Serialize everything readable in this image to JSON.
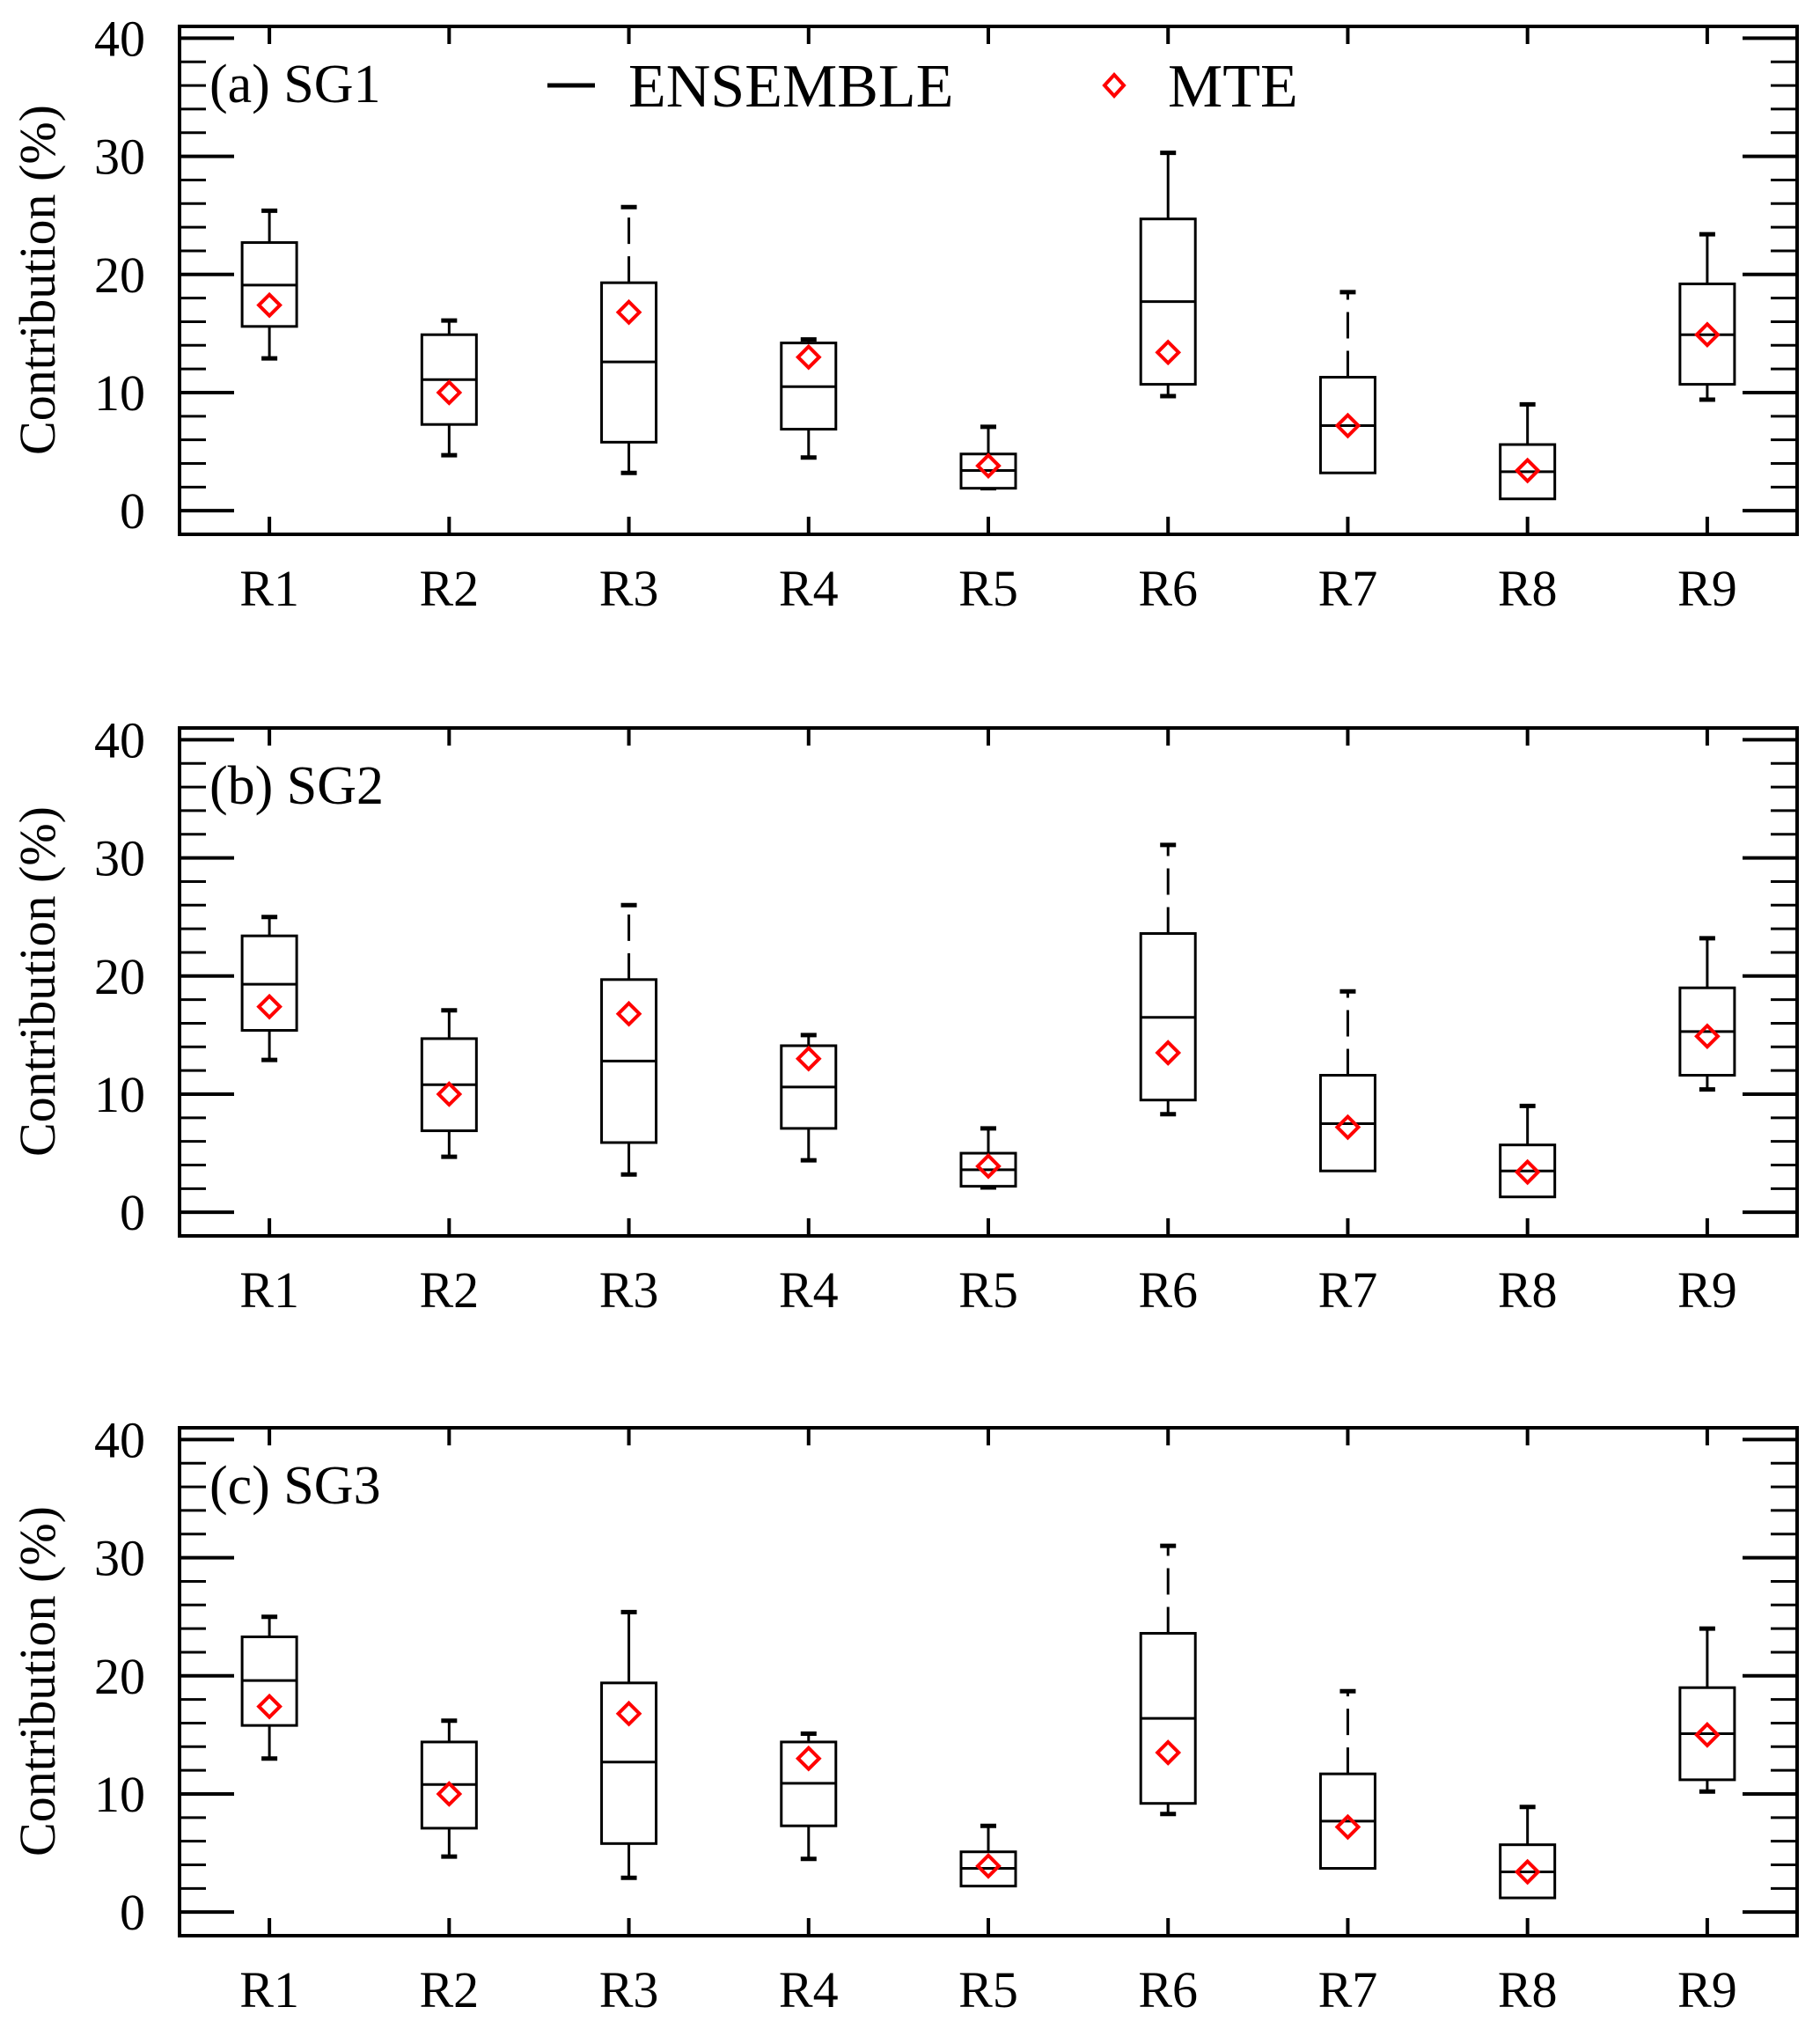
{
  "figure": {
    "colors": {
      "ensemble": "#000000",
      "mte": "#ff0000",
      "background": "#ffffff"
    },
    "legend": {
      "position": "top-center",
      "entries": [
        {
          "label": "ENSEMBLE",
          "symbol": "dash",
          "color": "#000000"
        },
        {
          "label": "MTE",
          "symbol": "open-diamond",
          "color": "#ff0000"
        }
      ]
    }
  },
  "chart_data": [
    {
      "type": "box",
      "panel": "a",
      "title": "(a) SG1",
      "xlabel": "",
      "ylabel": "Contribution (%)",
      "ylim": [
        -2,
        41
      ],
      "yticks": [
        0,
        10,
        20,
        30,
        40
      ],
      "yminor_step": 2,
      "grid": false,
      "categories": [
        "R1",
        "R2",
        "R3",
        "R4",
        "R5",
        "R6",
        "R7",
        "R8",
        "R9"
      ],
      "series": [
        {
          "name": "ENSEMBLE",
          "stats": [
            {
              "whisker_low": 12.9,
              "q1": 15.6,
              "median": 19.1,
              "q3": 22.7,
              "whisker_high": 25.4
            },
            {
              "whisker_low": 4.7,
              "q1": 7.3,
              "median": 11.1,
              "q3": 14.9,
              "whisker_high": 16.1
            },
            {
              "whisker_low": 3.2,
              "q1": 5.8,
              "median": 12.6,
              "q3": 19.3,
              "whisker_high": 25.7
            },
            {
              "whisker_low": 4.5,
              "q1": 6.9,
              "median": 10.5,
              "q3": 14.2,
              "whisker_high": 14.5
            },
            {
              "whisker_low": 1.9,
              "q1": 1.9,
              "median": 3.4,
              "q3": 4.8,
              "whisker_high": 7.1
            },
            {
              "whisker_low": 9.7,
              "q1": 10.7,
              "median": 17.7,
              "q3": 24.7,
              "whisker_high": 30.3
            },
            {
              "whisker_low": 3.8,
              "q1": 3.2,
              "median": 7.2,
              "q3": 11.3,
              "whisker_high": 18.5
            },
            {
              "whisker_low": 1.4,
              "q1": 1.0,
              "median": 3.3,
              "q3": 5.6,
              "whisker_high": 9.0
            },
            {
              "whisker_low": 9.4,
              "q1": 10.7,
              "median": 14.9,
              "q3": 19.2,
              "whisker_high": 23.4
            }
          ]
        },
        {
          "name": "MTE",
          "values": [
            17.4,
            10.0,
            16.8,
            13.0,
            3.8,
            13.4,
            7.2,
            3.4,
            14.9
          ]
        }
      ]
    },
    {
      "type": "box",
      "panel": "b",
      "title": "(b) SG2",
      "xlabel": "",
      "ylabel": "Contribution (%)",
      "ylim": [
        -2,
        41
      ],
      "yticks": [
        0,
        10,
        20,
        30,
        40
      ],
      "yminor_step": 2,
      "grid": false,
      "categories": [
        "R1",
        "R2",
        "R3",
        "R4",
        "R5",
        "R6",
        "R7",
        "R8",
        "R9"
      ],
      "series": [
        {
          "name": "ENSEMBLE",
          "stats": [
            {
              "whisker_low": 12.9,
              "q1": 15.4,
              "median": 19.3,
              "q3": 23.4,
              "whisker_high": 25.0
            },
            {
              "whisker_low": 4.7,
              "q1": 6.9,
              "median": 10.8,
              "q3": 14.7,
              "whisker_high": 17.1
            },
            {
              "whisker_low": 3.2,
              "q1": 5.9,
              "median": 12.8,
              "q3": 19.7,
              "whisker_high": 26.0
            },
            {
              "whisker_low": 4.4,
              "q1": 7.1,
              "median": 10.6,
              "q3": 14.1,
              "whisker_high": 15.0
            },
            {
              "whisker_low": 2.1,
              "q1": 2.2,
              "median": 3.6,
              "q3": 5.0,
              "whisker_high": 7.1
            },
            {
              "whisker_low": 8.3,
              "q1": 9.5,
              "median": 16.5,
              "q3": 23.6,
              "whisker_high": 31.1
            },
            {
              "whisker_low": 3.7,
              "q1": 3.5,
              "median": 7.5,
              "q3": 11.6,
              "whisker_high": 18.7
            },
            {
              "whisker_low": 1.4,
              "q1": 1.3,
              "median": 3.5,
              "q3": 5.7,
              "whisker_high": 9.0
            },
            {
              "whisker_low": 10.4,
              "q1": 11.6,
              "median": 15.3,
              "q3": 19.0,
              "whisker_high": 23.2
            }
          ]
        },
        {
          "name": "MTE",
          "values": [
            17.4,
            10.0,
            16.8,
            13.0,
            3.9,
            13.5,
            7.2,
            3.4,
            14.9
          ]
        }
      ]
    },
    {
      "type": "box",
      "panel": "c",
      "title": "(c) SG3",
      "xlabel": "",
      "ylabel": "Contribution (%)",
      "ylim": [
        -2,
        41
      ],
      "yticks": [
        0,
        10,
        20,
        30,
        40
      ],
      "yminor_step": 2,
      "grid": false,
      "categories": [
        "R1",
        "R2",
        "R3",
        "R4",
        "R5",
        "R6",
        "R7",
        "R8",
        "R9"
      ],
      "series": [
        {
          "name": "ENSEMBLE",
          "stats": [
            {
              "whisker_low": 13.0,
              "q1": 15.8,
              "median": 19.6,
              "q3": 23.3,
              "whisker_high": 25.0
            },
            {
              "whisker_low": 4.7,
              "q1": 7.1,
              "median": 10.8,
              "q3": 14.4,
              "whisker_high": 16.2
            },
            {
              "whisker_low": 2.9,
              "q1": 5.8,
              "median": 12.7,
              "q3": 19.4,
              "whisker_high": 25.4
            },
            {
              "whisker_low": 4.5,
              "q1": 7.3,
              "median": 10.9,
              "q3": 14.4,
              "whisker_high": 15.1
            },
            {
              "whisker_low": 2.4,
              "q1": 2.2,
              "median": 3.7,
              "q3": 5.1,
              "whisker_high": 7.3
            },
            {
              "whisker_low": 8.3,
              "q1": 9.2,
              "median": 16.4,
              "q3": 23.6,
              "whisker_high": 31.0
            },
            {
              "whisker_low": 4.3,
              "q1": 3.7,
              "median": 7.7,
              "q3": 11.7,
              "whisker_high": 18.7
            },
            {
              "whisker_low": 1.5,
              "q1": 1.2,
              "median": 3.4,
              "q3": 5.7,
              "whisker_high": 8.9
            },
            {
              "whisker_low": 10.2,
              "q1": 11.2,
              "median": 15.1,
              "q3": 19.0,
              "whisker_high": 24.0
            }
          ]
        },
        {
          "name": "MTE",
          "values": [
            17.4,
            10.0,
            16.8,
            13.0,
            3.9,
            13.5,
            7.2,
            3.4,
            15.0
          ]
        }
      ]
    }
  ]
}
